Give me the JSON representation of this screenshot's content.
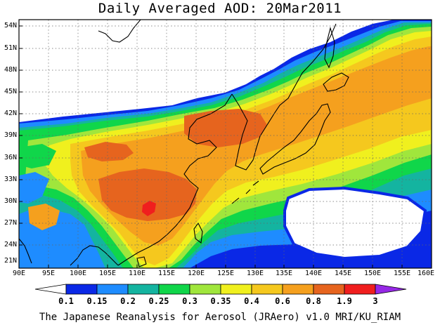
{
  "title": "Daily Averaged AOD: 20Mar2011",
  "credit": "The Japanese Reanalysis for Aerosol (JRAero) v1.0 MRI/KU_RIAM",
  "map": {
    "lon_labels": [
      "90E",
      "95E",
      "100E",
      "105E",
      "110E",
      "115E",
      "120E",
      "125E",
      "130E",
      "135E",
      "140E",
      "145E",
      "150E",
      "155E",
      "160E"
    ],
    "lat_labels": [
      "54N",
      "51N",
      "48N",
      "45N",
      "42N",
      "39N",
      "36N",
      "33N",
      "30N",
      "27N",
      "24N",
      "21N"
    ]
  },
  "colorbar": {
    "labels": [
      "0.1",
      "0.15",
      "0.2",
      "0.25",
      "0.3",
      "0.35",
      "0.4",
      "0.6",
      "0.8",
      "1.9",
      "3"
    ],
    "colors": [
      "#ffffff",
      "#0a28e6",
      "#1e8cff",
      "#14b4a0",
      "#10d64a",
      "#a0e63c",
      "#f0f01e",
      "#f5c81e",
      "#f5a01e",
      "#e6641e",
      "#f01e1e",
      "#9628e6"
    ]
  },
  "palette": {
    "white": "#ffffff",
    "blue": "#0a28e6",
    "light_blue": "#1e8cff",
    "teal": "#14b4a0",
    "green": "#10d64a",
    "yellow_green": "#a0e63c",
    "yellow": "#f0f01e",
    "light_orange": "#f5c81e",
    "orange": "#f5a01e",
    "dark_orange": "#e6641e",
    "red": "#f01e1e"
  }
}
